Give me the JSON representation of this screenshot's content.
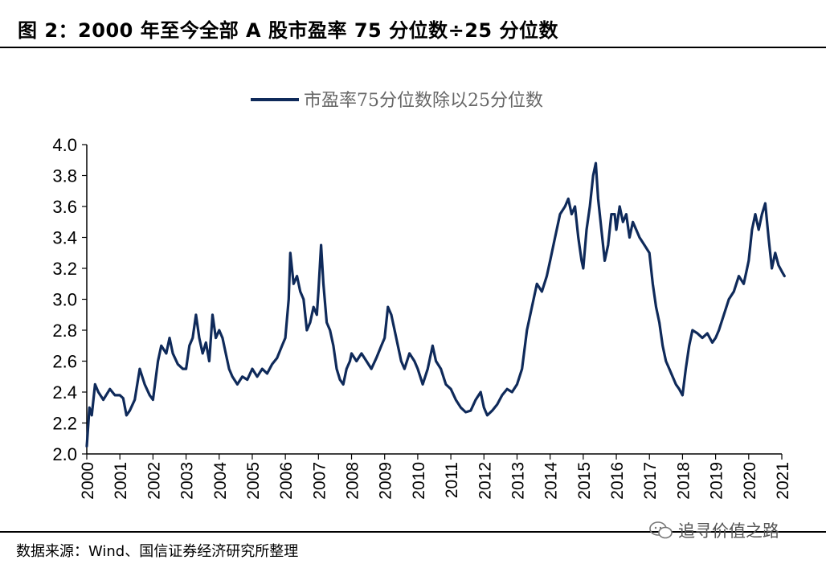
{
  "figure": {
    "title": "图 2：2000 年至今全部 A 股市盈率 75 分位数÷25 分位数",
    "source": "数据来源：Wind、国信证券经济研究所整理",
    "watermark": "追寻价值之路"
  },
  "colors": {
    "series": "#0f2a5a",
    "axis": "#000000",
    "legend_text": "#666666"
  },
  "chart_data": {
    "type": "line",
    "title": "",
    "xlabel": "",
    "ylabel": "",
    "xlim": [
      2000,
      2021
    ],
    "ylim": [
      2.0,
      4.0
    ],
    "ytick_step": 0.2,
    "grid": false,
    "legend_position": "top-center",
    "x_ticks": [
      "2000",
      "2001",
      "2002",
      "2003",
      "2004",
      "2005",
      "2006",
      "2007",
      "2008",
      "2009",
      "2010",
      "2011",
      "2012",
      "2013",
      "2014",
      "2015",
      "2016",
      "2017",
      "2018",
      "2019",
      "2020",
      "2021"
    ],
    "y_ticks": [
      "2.0",
      "2.2",
      "2.4",
      "2.6",
      "2.8",
      "3.0",
      "3.2",
      "3.4",
      "3.6",
      "3.8",
      "4.0"
    ],
    "series": [
      {
        "name": "市盈率75分位数除以25分位数",
        "points": [
          [
            2000.0,
            2.05
          ],
          [
            2000.08,
            2.3
          ],
          [
            2000.15,
            2.25
          ],
          [
            2000.25,
            2.45
          ],
          [
            2000.35,
            2.4
          ],
          [
            2000.5,
            2.35
          ],
          [
            2000.7,
            2.42
          ],
          [
            2000.85,
            2.38
          ],
          [
            2001.0,
            2.38
          ],
          [
            2001.1,
            2.36
          ],
          [
            2001.2,
            2.25
          ],
          [
            2001.3,
            2.28
          ],
          [
            2001.45,
            2.35
          ],
          [
            2001.6,
            2.55
          ],
          [
            2001.75,
            2.45
          ],
          [
            2001.9,
            2.38
          ],
          [
            2002.0,
            2.35
          ],
          [
            2002.15,
            2.6
          ],
          [
            2002.25,
            2.7
          ],
          [
            2002.4,
            2.65
          ],
          [
            2002.5,
            2.75
          ],
          [
            2002.6,
            2.65
          ],
          [
            2002.75,
            2.58
          ],
          [
            2002.9,
            2.55
          ],
          [
            2003.0,
            2.55
          ],
          [
            2003.1,
            2.7
          ],
          [
            2003.2,
            2.75
          ],
          [
            2003.3,
            2.9
          ],
          [
            2003.4,
            2.75
          ],
          [
            2003.5,
            2.65
          ],
          [
            2003.6,
            2.72
          ],
          [
            2003.7,
            2.6
          ],
          [
            2003.8,
            2.9
          ],
          [
            2003.9,
            2.75
          ],
          [
            2004.0,
            2.8
          ],
          [
            2004.1,
            2.75
          ],
          [
            2004.2,
            2.65
          ],
          [
            2004.3,
            2.55
          ],
          [
            2004.4,
            2.5
          ],
          [
            2004.55,
            2.45
          ],
          [
            2004.7,
            2.5
          ],
          [
            2004.85,
            2.48
          ],
          [
            2005.0,
            2.55
          ],
          [
            2005.15,
            2.5
          ],
          [
            2005.3,
            2.55
          ],
          [
            2005.45,
            2.52
          ],
          [
            2005.6,
            2.58
          ],
          [
            2005.75,
            2.62
          ],
          [
            2005.9,
            2.7
          ],
          [
            2006.0,
            2.75
          ],
          [
            2006.1,
            3.0
          ],
          [
            2006.15,
            3.3
          ],
          [
            2006.25,
            3.1
          ],
          [
            2006.35,
            3.15
          ],
          [
            2006.45,
            3.05
          ],
          [
            2006.55,
            3.0
          ],
          [
            2006.65,
            2.8
          ],
          [
            2006.75,
            2.85
          ],
          [
            2006.85,
            2.95
          ],
          [
            2006.95,
            2.9
          ],
          [
            2007.0,
            3.05
          ],
          [
            2007.08,
            3.35
          ],
          [
            2007.15,
            3.1
          ],
          [
            2007.25,
            2.85
          ],
          [
            2007.35,
            2.8
          ],
          [
            2007.45,
            2.7
          ],
          [
            2007.55,
            2.55
          ],
          [
            2007.65,
            2.48
          ],
          [
            2007.75,
            2.45
          ],
          [
            2007.85,
            2.55
          ],
          [
            2007.95,
            2.6
          ],
          [
            2008.0,
            2.65
          ],
          [
            2008.15,
            2.6
          ],
          [
            2008.3,
            2.65
          ],
          [
            2008.45,
            2.6
          ],
          [
            2008.6,
            2.55
          ],
          [
            2008.75,
            2.62
          ],
          [
            2008.9,
            2.7
          ],
          [
            2009.0,
            2.75
          ],
          [
            2009.1,
            2.95
          ],
          [
            2009.2,
            2.9
          ],
          [
            2009.3,
            2.8
          ],
          [
            2009.4,
            2.7
          ],
          [
            2009.5,
            2.6
          ],
          [
            2009.6,
            2.55
          ],
          [
            2009.75,
            2.65
          ],
          [
            2009.9,
            2.6
          ],
          [
            2010.0,
            2.55
          ],
          [
            2010.15,
            2.45
          ],
          [
            2010.3,
            2.55
          ],
          [
            2010.45,
            2.7
          ],
          [
            2010.55,
            2.6
          ],
          [
            2010.7,
            2.55
          ],
          [
            2010.85,
            2.45
          ],
          [
            2011.0,
            2.42
          ],
          [
            2011.15,
            2.35
          ],
          [
            2011.3,
            2.3
          ],
          [
            2011.45,
            2.27
          ],
          [
            2011.6,
            2.28
          ],
          [
            2011.75,
            2.35
          ],
          [
            2011.9,
            2.4
          ],
          [
            2012.0,
            2.3
          ],
          [
            2012.1,
            2.25
          ],
          [
            2012.25,
            2.28
          ],
          [
            2012.4,
            2.32
          ],
          [
            2012.55,
            2.38
          ],
          [
            2012.7,
            2.42
          ],
          [
            2012.85,
            2.4
          ],
          [
            2013.0,
            2.45
          ],
          [
            2013.15,
            2.55
          ],
          [
            2013.3,
            2.8
          ],
          [
            2013.45,
            2.95
          ],
          [
            2013.6,
            3.1
          ],
          [
            2013.75,
            3.05
          ],
          [
            2013.9,
            3.15
          ],
          [
            2014.0,
            3.25
          ],
          [
            2014.15,
            3.4
          ],
          [
            2014.3,
            3.55
          ],
          [
            2014.45,
            3.6
          ],
          [
            2014.55,
            3.65
          ],
          [
            2014.65,
            3.55
          ],
          [
            2014.75,
            3.6
          ],
          [
            2014.85,
            3.4
          ],
          [
            2014.95,
            3.25
          ],
          [
            2015.0,
            3.2
          ],
          [
            2015.1,
            3.45
          ],
          [
            2015.2,
            3.6
          ],
          [
            2015.3,
            3.8
          ],
          [
            2015.38,
            3.88
          ],
          [
            2015.45,
            3.65
          ],
          [
            2015.55,
            3.45
          ],
          [
            2015.65,
            3.25
          ],
          [
            2015.75,
            3.35
          ],
          [
            2015.85,
            3.55
          ],
          [
            2015.95,
            3.55
          ],
          [
            2016.0,
            3.45
          ],
          [
            2016.1,
            3.6
          ],
          [
            2016.2,
            3.5
          ],
          [
            2016.3,
            3.55
          ],
          [
            2016.4,
            3.4
          ],
          [
            2016.5,
            3.5
          ],
          [
            2016.6,
            3.45
          ],
          [
            2016.7,
            3.4
          ],
          [
            2016.85,
            3.35
          ],
          [
            2017.0,
            3.3
          ],
          [
            2017.1,
            3.1
          ],
          [
            2017.2,
            2.95
          ],
          [
            2017.3,
            2.85
          ],
          [
            2017.4,
            2.7
          ],
          [
            2017.5,
            2.6
          ],
          [
            2017.6,
            2.55
          ],
          [
            2017.7,
            2.5
          ],
          [
            2017.8,
            2.45
          ],
          [
            2017.9,
            2.42
          ],
          [
            2018.0,
            2.38
          ],
          [
            2018.1,
            2.55
          ],
          [
            2018.2,
            2.7
          ],
          [
            2018.3,
            2.8
          ],
          [
            2018.45,
            2.78
          ],
          [
            2018.6,
            2.75
          ],
          [
            2018.75,
            2.78
          ],
          [
            2018.9,
            2.72
          ],
          [
            2019.0,
            2.75
          ],
          [
            2019.1,
            2.8
          ],
          [
            2019.25,
            2.9
          ],
          [
            2019.4,
            3.0
          ],
          [
            2019.55,
            3.05
          ],
          [
            2019.7,
            3.15
          ],
          [
            2019.85,
            3.1
          ],
          [
            2019.95,
            3.2
          ],
          [
            2020.0,
            3.25
          ],
          [
            2020.1,
            3.45
          ],
          [
            2020.2,
            3.55
          ],
          [
            2020.3,
            3.45
          ],
          [
            2020.4,
            3.55
          ],
          [
            2020.5,
            3.62
          ],
          [
            2020.6,
            3.4
          ],
          [
            2020.7,
            3.2
          ],
          [
            2020.8,
            3.3
          ],
          [
            2020.9,
            3.22
          ],
          [
            2021.0,
            3.18
          ],
          [
            2021.08,
            3.15
          ]
        ]
      }
    ]
  }
}
